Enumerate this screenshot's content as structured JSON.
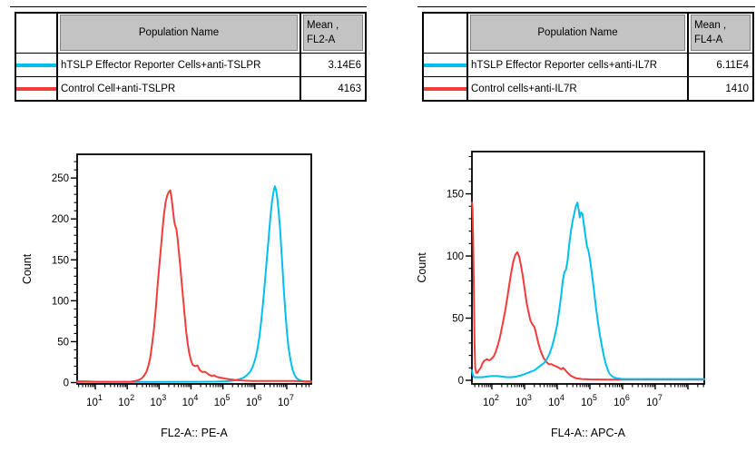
{
  "colors": {
    "reporter": "#00BFEF",
    "control": "#F23B3B",
    "table_header_bg": "#C3C3C3"
  },
  "tables": [
    {
      "header": {
        "population": "Population Name",
        "mean_line1": "Mean ,",
        "mean_line2": "FL2-A"
      },
      "rows": [
        {
          "color": "#00BFEF",
          "name": "hTSLP Effector Reporter Cells+anti-TSLPR",
          "value": "3.14E6"
        },
        {
          "color": "#F23B3B",
          "name": "Control Cell+anti-TSLPR",
          "value": "4163"
        }
      ]
    },
    {
      "header": {
        "population": "Population Name",
        "mean_line1": "Mean ,",
        "mean_line2": "FL4-A"
      },
      "rows": [
        {
          "color": "#00BFEF",
          "name": "hTSLP Effector Reporter cells+anti-IL7R",
          "value": "6.11E4"
        },
        {
          "color": "#F23B3B",
          "name": "Control cells+anti-IL7R",
          "value": "1410"
        }
      ]
    }
  ],
  "chart_data": [
    {
      "type": "line",
      "subtype": "flow-cytometry-histogram",
      "xlabel": "FL2-A:: PE-A",
      "ylabel": "Count",
      "x_scale": "log10",
      "x_range_log": [
        0.43,
        7.77
      ],
      "x_major_ticks": [
        1,
        2,
        3,
        4,
        5,
        6,
        7
      ],
      "ylim": [
        0,
        279
      ],
      "y_major_ticks": [
        0,
        50,
        100,
        150,
        200,
        250
      ],
      "y_minor_step": 10,
      "grid": false,
      "series": [
        {
          "id": "reporter",
          "name": "hTSLP Effector Reporter Cells+anti-TSLPR",
          "color": "#00BFEF",
          "points": [
            [
              0.43,
              0.8
            ],
            [
              1.2,
              0.8
            ],
            [
              2.0,
              0.8
            ],
            [
              2.8,
              0.8
            ],
            [
              3.6,
              1
            ],
            [
              4.3,
              1
            ],
            [
              4.8,
              1.2
            ],
            [
              5.05,
              1.5
            ],
            [
              5.25,
              2
            ],
            [
              5.4,
              3
            ],
            [
              5.55,
              4.5
            ],
            [
              5.65,
              6
            ],
            [
              5.75,
              9
            ],
            [
              5.85,
              13
            ],
            [
              5.93,
              19
            ],
            [
              6.0,
              27
            ],
            [
              6.07,
              38
            ],
            [
              6.14,
              55
            ],
            [
              6.2,
              75
            ],
            [
              6.26,
              98
            ],
            [
              6.32,
              124
            ],
            [
              6.38,
              152
            ],
            [
              6.44,
              180
            ],
            [
              6.49,
              203
            ],
            [
              6.54,
              222
            ],
            [
              6.59,
              234
            ],
            [
              6.63,
              240
            ],
            [
              6.67,
              235
            ],
            [
              6.71,
              224
            ],
            [
              6.75,
              208
            ],
            [
              6.79,
              188
            ],
            [
              6.83,
              163
            ],
            [
              6.87,
              138
            ],
            [
              6.91,
              112
            ],
            [
              6.96,
              85
            ],
            [
              7.01,
              60
            ],
            [
              7.06,
              42
            ],
            [
              7.12,
              27
            ],
            [
              7.18,
              16
            ],
            [
              7.25,
              9
            ],
            [
              7.32,
              5
            ],
            [
              7.4,
              3
            ],
            [
              7.5,
              1.5
            ],
            [
              7.6,
              1
            ],
            [
              7.7,
              1
            ],
            [
              7.77,
              0.8
            ]
          ]
        },
        {
          "id": "control",
          "name": "Control Cell+anti-TSLPR",
          "color": "#F23B3B",
          "points": [
            [
              0.43,
              1.5
            ],
            [
              0.7,
              1.5
            ],
            [
              1.0,
              1
            ],
            [
              1.4,
              1
            ],
            [
              1.8,
              1
            ],
            [
              2.1,
              1
            ],
            [
              2.25,
              2
            ],
            [
              2.35,
              3
            ],
            [
              2.45,
              5
            ],
            [
              2.52,
              8
            ],
            [
              2.6,
              13
            ],
            [
              2.66,
              20
            ],
            [
              2.72,
              30
            ],
            [
              2.78,
              47
            ],
            [
              2.84,
              66
            ],
            [
              2.9,
              92
            ],
            [
              2.95,
              118
            ],
            [
              3.0,
              140
            ],
            [
              3.05,
              162
            ],
            [
              3.1,
              185
            ],
            [
              3.15,
              205
            ],
            [
              3.2,
              220
            ],
            [
              3.25,
              228
            ],
            [
              3.3,
              233
            ],
            [
              3.35,
              235
            ],
            [
              3.39,
              226
            ],
            [
              3.43,
              212
            ],
            [
              3.47,
              198
            ],
            [
              3.5,
              192
            ],
            [
              3.54,
              188
            ],
            [
              3.58,
              176
            ],
            [
              3.62,
              160
            ],
            [
              3.66,
              144
            ],
            [
              3.7,
              126
            ],
            [
              3.75,
              104
            ],
            [
              3.8,
              82
            ],
            [
              3.85,
              62
            ],
            [
              3.9,
              46
            ],
            [
              3.95,
              35
            ],
            [
              4.0,
              27
            ],
            [
              4.05,
              22
            ],
            [
              4.12,
              20
            ],
            [
              4.2,
              21
            ],
            [
              4.28,
              15
            ],
            [
              4.35,
              13
            ],
            [
              4.45,
              13
            ],
            [
              4.55,
              10
            ],
            [
              4.65,
              8
            ],
            [
              4.72,
              9
            ],
            [
              4.8,
              7
            ],
            [
              4.92,
              6
            ],
            [
              5.05,
              5
            ],
            [
              5.2,
              4
            ],
            [
              5.4,
              3
            ],
            [
              5.6,
              2.5
            ],
            [
              5.9,
              2
            ],
            [
              6.3,
              2
            ],
            [
              6.8,
              2
            ],
            [
              7.2,
              2
            ],
            [
              7.6,
              1.5
            ],
            [
              7.77,
              1.5
            ]
          ]
        }
      ]
    },
    {
      "type": "line",
      "subtype": "flow-cytometry-histogram",
      "xlabel": "FL4-A:: APC-A",
      "ylabel": "Count",
      "x_scale": "log10",
      "x_range_log": [
        1.39,
        8.5
      ],
      "x_major_ticks": [
        2,
        3,
        4,
        5,
        6,
        7
      ],
      "ylim": [
        0,
        184
      ],
      "y_major_ticks": [
        0,
        50,
        100,
        150
      ],
      "y_minor_step": 10,
      "grid": false,
      "series": [
        {
          "id": "control",
          "name": "Control cells+anti-IL7R",
          "color": "#F23B3B",
          "points": [
            [
              1.39,
              143
            ],
            [
              1.41,
              138
            ],
            [
              1.43,
              110
            ],
            [
              1.45,
              70
            ],
            [
              1.47,
              30
            ],
            [
              1.49,
              10
            ],
            [
              1.52,
              6
            ],
            [
              1.56,
              6
            ],
            [
              1.6,
              8
            ],
            [
              1.66,
              10
            ],
            [
              1.72,
              14
            ],
            [
              1.78,
              16
            ],
            [
              1.85,
              17
            ],
            [
              1.92,
              16
            ],
            [
              1.98,
              17
            ],
            [
              2.05,
              19
            ],
            [
              2.12,
              23
            ],
            [
              2.18,
              28
            ],
            [
              2.25,
              35
            ],
            [
              2.32,
              44
            ],
            [
              2.4,
              55
            ],
            [
              2.47,
              66
            ],
            [
              2.54,
              78
            ],
            [
              2.6,
              88
            ],
            [
              2.66,
              96
            ],
            [
              2.72,
              101
            ],
            [
              2.78,
              103
            ],
            [
              2.83,
              100
            ],
            [
              2.88,
              94
            ],
            [
              2.94,
              85
            ],
            [
              3.0,
              74
            ],
            [
              3.06,
              63
            ],
            [
              3.12,
              55
            ],
            [
              3.18,
              48
            ],
            [
              3.24,
              45
            ],
            [
              3.3,
              43
            ],
            [
              3.36,
              37
            ],
            [
              3.42,
              30
            ],
            [
              3.5,
              23
            ],
            [
              3.58,
              18
            ],
            [
              3.66,
              15
            ],
            [
              3.74,
              13
            ],
            [
              3.82,
              13
            ],
            [
              3.9,
              12
            ],
            [
              3.98,
              11
            ],
            [
              4.05,
              10
            ],
            [
              4.12,
              9
            ],
            [
              4.18,
              10
            ],
            [
              4.25,
              8
            ],
            [
              4.32,
              6
            ],
            [
              4.4,
              4
            ],
            [
              4.5,
              2.5
            ],
            [
              4.6,
              1.5
            ],
            [
              4.75,
              1
            ],
            [
              5.0,
              0.7
            ],
            [
              5.5,
              0.6
            ],
            [
              6.0,
              0.6
            ],
            [
              6.5,
              0.6
            ],
            [
              7.0,
              0.6
            ],
            [
              7.5,
              0.6
            ],
            [
              8.0,
              0.6
            ],
            [
              8.5,
              0.6
            ]
          ]
        },
        {
          "id": "reporter",
          "name": "hTSLP Effector Reporter cells+anti-IL7R",
          "color": "#00BFEF",
          "points": [
            [
              1.39,
              8
            ],
            [
              1.42,
              4
            ],
            [
              1.46,
              2.5
            ],
            [
              1.55,
              2.5
            ],
            [
              1.7,
              2.5
            ],
            [
              1.85,
              3
            ],
            [
              2.0,
              3.5
            ],
            [
              2.15,
              3.5
            ],
            [
              2.3,
              3
            ],
            [
              2.45,
              2.5
            ],
            [
              2.6,
              2.5
            ],
            [
              2.75,
              3
            ],
            [
              2.9,
              4
            ],
            [
              3.0,
              5
            ],
            [
              3.1,
              6
            ],
            [
              3.2,
              7
            ],
            [
              3.3,
              8
            ],
            [
              3.4,
              10
            ],
            [
              3.5,
              12
            ],
            [
              3.6,
              14
            ],
            [
              3.68,
              17
            ],
            [
              3.76,
              21
            ],
            [
              3.84,
              27
            ],
            [
              3.92,
              35
            ],
            [
              4.0,
              45
            ],
            [
              4.06,
              56
            ],
            [
              4.12,
              68
            ],
            [
              4.17,
              80
            ],
            [
              4.22,
              87
            ],
            [
              4.27,
              89
            ],
            [
              4.32,
              97
            ],
            [
              4.37,
              110
            ],
            [
              4.42,
              120
            ],
            [
              4.47,
              128
            ],
            [
              4.52,
              134
            ],
            [
              4.57,
              140
            ],
            [
              4.62,
              143
            ],
            [
              4.66,
              137
            ],
            [
              4.69,
              131
            ],
            [
              4.73,
              135
            ],
            [
              4.77,
              134
            ],
            [
              4.81,
              127
            ],
            [
              4.86,
              117
            ],
            [
              4.91,
              108
            ],
            [
              4.96,
              104
            ],
            [
              5.01,
              96
            ],
            [
              5.07,
              84
            ],
            [
              5.13,
              71
            ],
            [
              5.19,
              58
            ],
            [
              5.25,
              46
            ],
            [
              5.31,
              36
            ],
            [
              5.37,
              27
            ],
            [
              5.43,
              19
            ],
            [
              5.49,
              13
            ],
            [
              5.55,
              8
            ],
            [
              5.61,
              5
            ],
            [
              5.69,
              3
            ],
            [
              5.77,
              2
            ],
            [
              5.86,
              1.5
            ],
            [
              6.0,
              1
            ],
            [
              6.3,
              1
            ],
            [
              6.7,
              1
            ],
            [
              7.1,
              1
            ],
            [
              7.5,
              1
            ],
            [
              7.9,
              1
            ],
            [
              8.5,
              1
            ]
          ]
        }
      ]
    }
  ]
}
